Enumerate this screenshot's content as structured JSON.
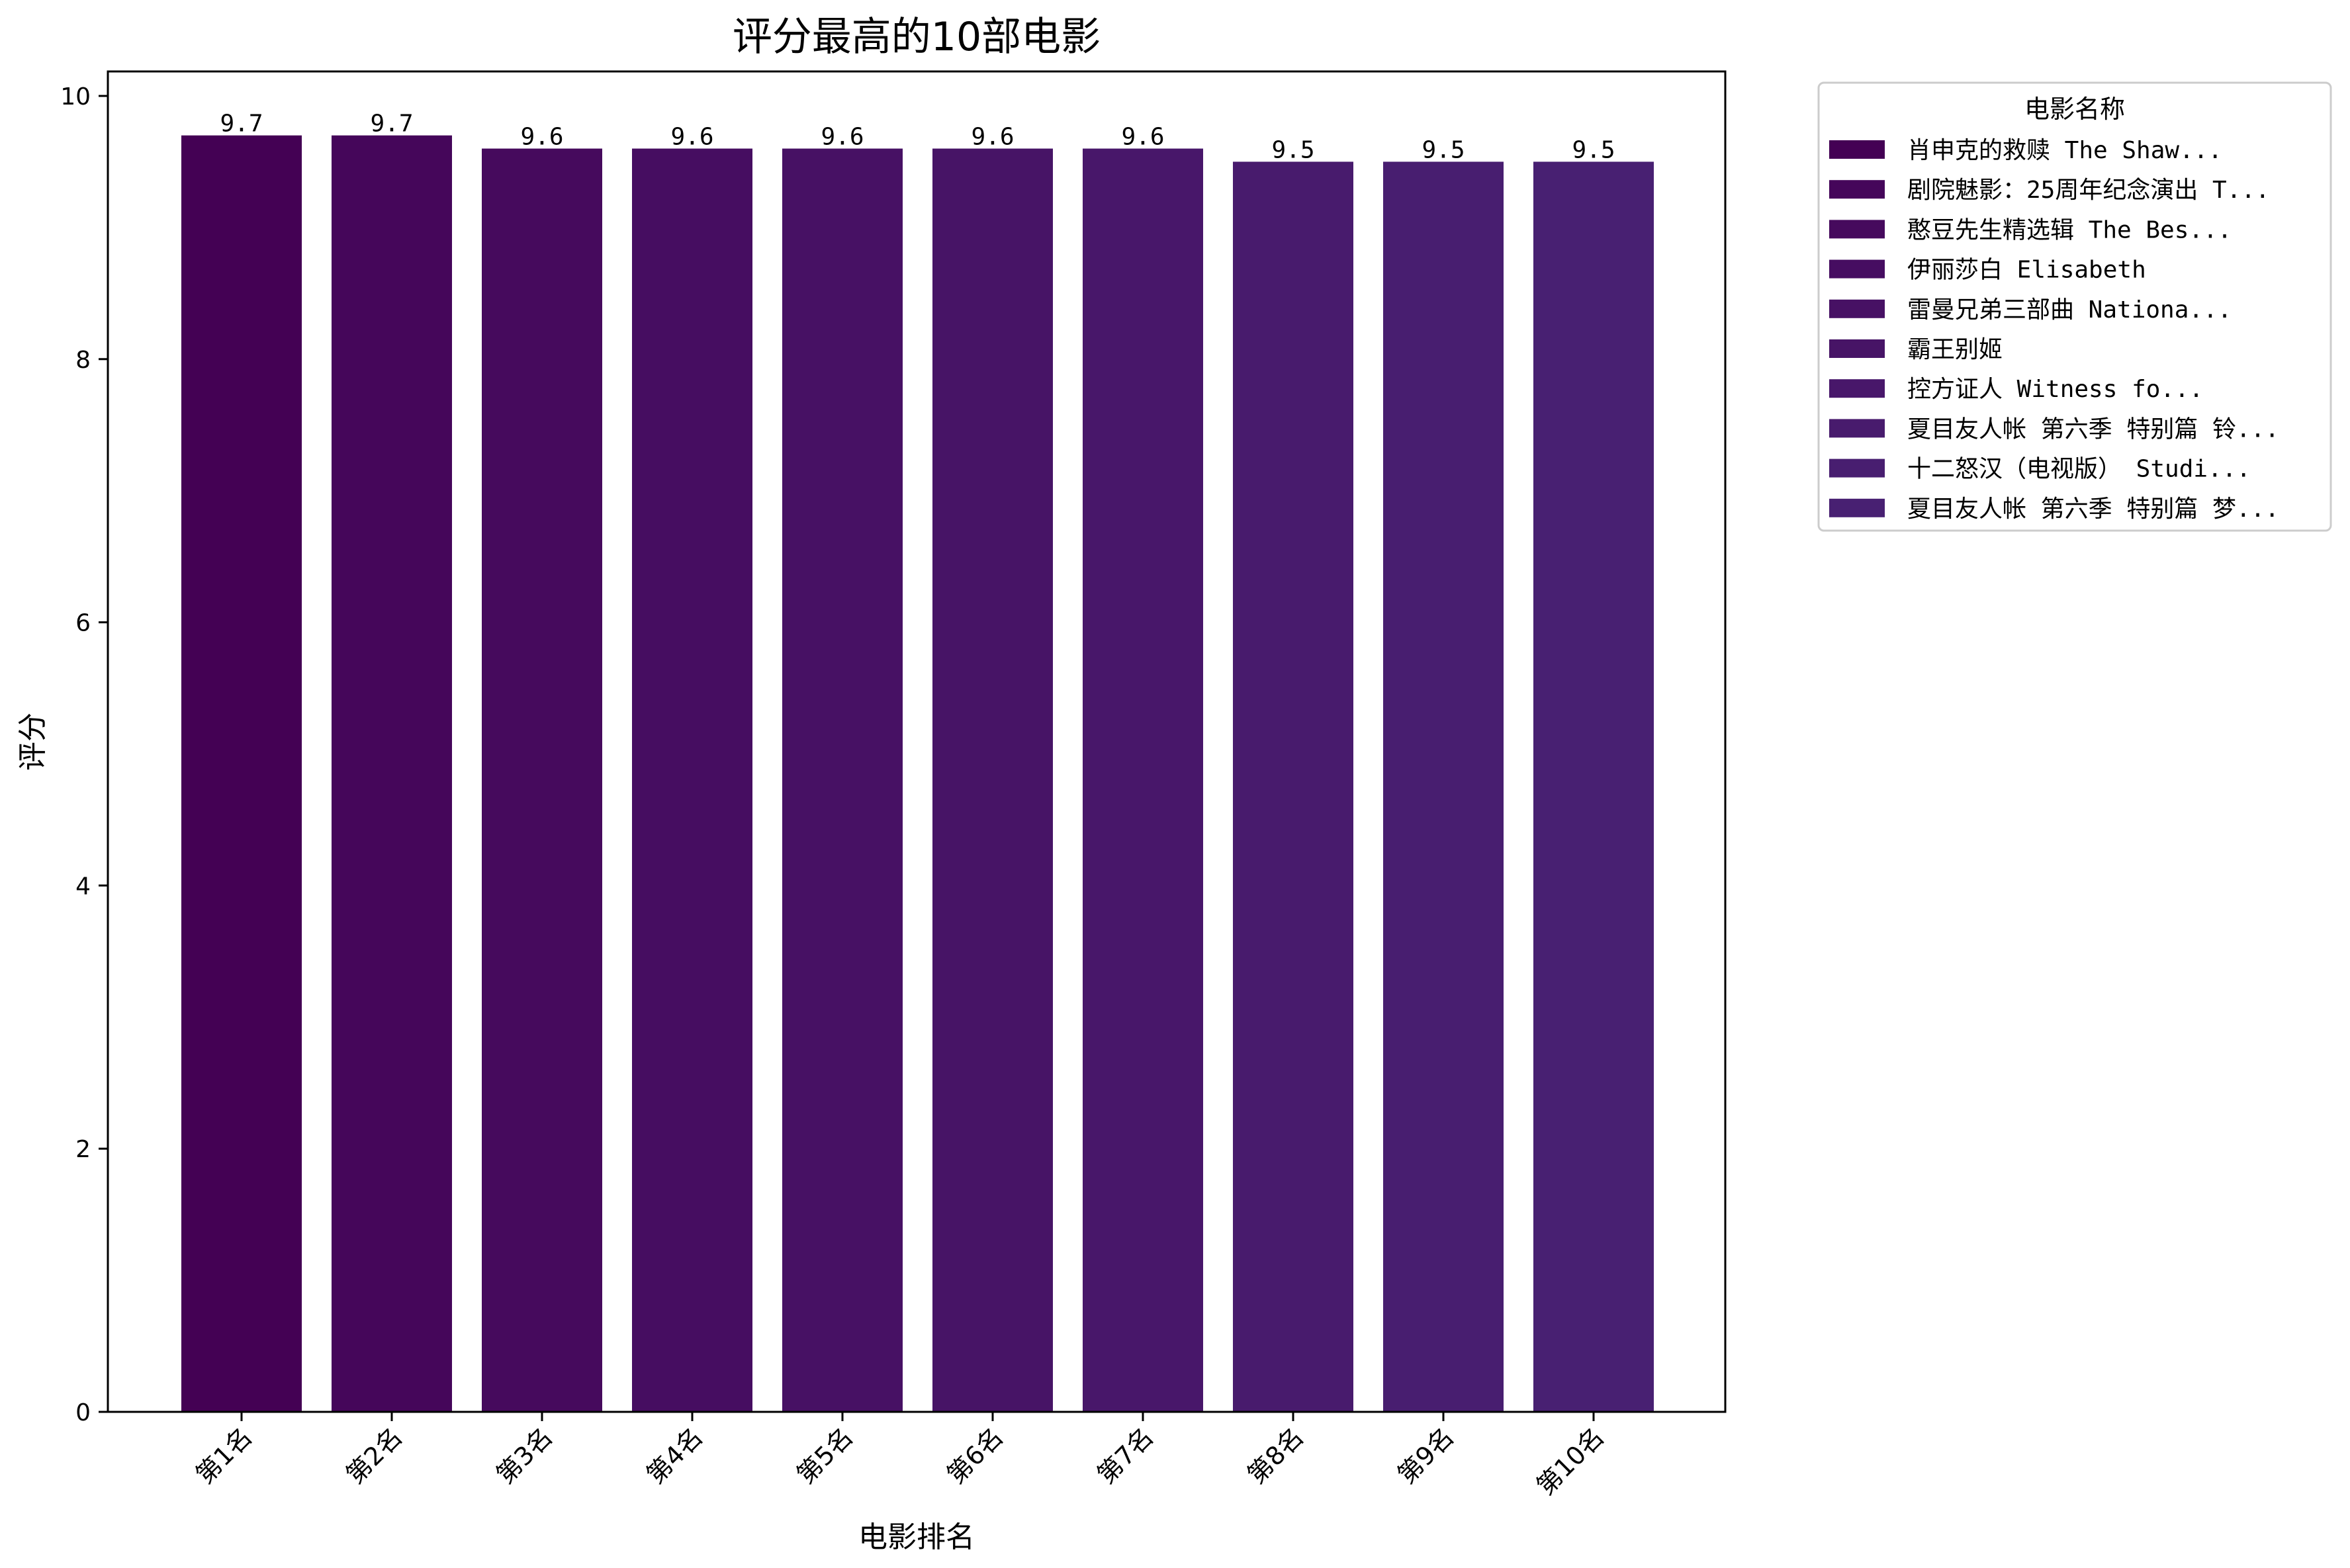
{
  "chart_data": {
    "type": "bar",
    "title": "评分最高的10部电影",
    "xlabel": "电影排名",
    "ylabel": "评分",
    "ylim": [
      0,
      10
    ],
    "yticks": [
      0,
      2,
      4,
      6,
      8,
      10
    ],
    "categories": [
      "第1名",
      "第2名",
      "第3名",
      "第4名",
      "第5名",
      "第6名",
      "第7名",
      "第8名",
      "第9名",
      "第10名"
    ],
    "values": [
      9.7,
      9.7,
      9.6,
      9.6,
      9.6,
      9.6,
      9.6,
      9.5,
      9.5,
      9.5
    ],
    "data_labels": [
      "9.7",
      "9.7",
      "9.6",
      "9.6",
      "9.6",
      "9.6",
      "9.6",
      "9.5",
      "9.5",
      "9.5"
    ],
    "colors": [
      "#440154",
      "#45065a",
      "#460a5d",
      "#460d61",
      "#471164",
      "#471466",
      "#48176a",
      "#481b6d",
      "#481e70",
      "#482072"
    ],
    "grid": false,
    "legend": {
      "title": "电影名称",
      "placement": "outside-upper-right",
      "entries": [
        "肖申克的救赎 The Shaw...",
        "剧院魅影：25周年纪念演出 T...",
        "憨豆先生精选辑 The Bes...",
        "伊丽莎白 Elisabeth",
        "雷曼兄弟三部曲 Nationa...",
        "霸王别姬",
        "控方证人 Witness fo...",
        "夏目友人帐 第六季 特别篇 铃...",
        "十二怒汉（电视版） Studi...",
        "夏目友人帐 第六季 特别篇 梦..."
      ]
    }
  }
}
